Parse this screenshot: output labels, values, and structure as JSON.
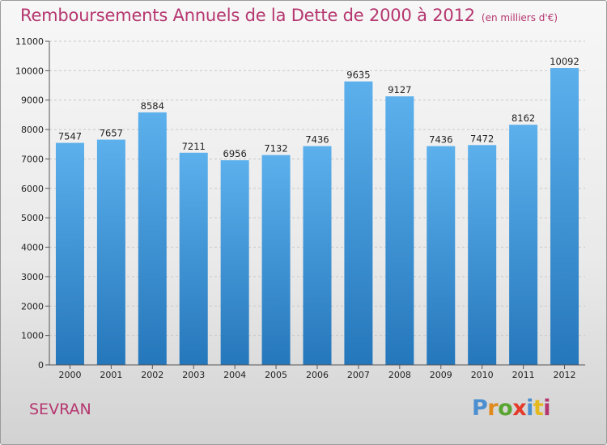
{
  "title": "Remboursements Annuels de la Dette de 2000 à 2012",
  "subtitle": "(en milliers d'€)",
  "city": "SEVRAN",
  "logo": {
    "letters": [
      "P",
      "r",
      "o",
      "x",
      "i",
      "t",
      "i"
    ],
    "colors": [
      "#4a8fd0",
      "#e08a1e",
      "#5aa531",
      "#e43b2a",
      "#4a8fd0",
      "#e4b91e",
      "#b5366f"
    ]
  },
  "colors": {
    "bar_top": "#5cb0ec",
    "bar_bottom": "#2577bb",
    "title": "#b5366f"
  },
  "chart_data": {
    "type": "bar",
    "title": "Remboursements Annuels de la Dette de 2000 à 2012",
    "xlabel": "",
    "ylabel": "",
    "categories": [
      "2000",
      "2001",
      "2002",
      "2003",
      "2004",
      "2005",
      "2006",
      "2007",
      "2008",
      "2009",
      "2010",
      "2011",
      "2012"
    ],
    "values": [
      7547,
      7657,
      8584,
      7211,
      6956,
      7132,
      7436,
      9635,
      9127,
      7436,
      7472,
      8162,
      10092
    ],
    "ylim": [
      0,
      11000
    ],
    "yticks": [
      0,
      1000,
      2000,
      3000,
      4000,
      5000,
      6000,
      7000,
      8000,
      9000,
      10000,
      11000
    ],
    "grid": true
  }
}
